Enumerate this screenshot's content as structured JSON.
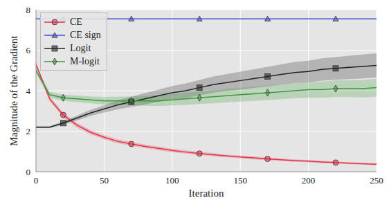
{
  "chart_data": {
    "type": "line",
    "x_label": "Iteration",
    "y_label": "Magnitude of the Gradient",
    "x": [
      0,
      10,
      20,
      30,
      40,
      50,
      60,
      70,
      80,
      90,
      100,
      110,
      120,
      130,
      140,
      150,
      160,
      170,
      180,
      190,
      200,
      210,
      220,
      230,
      240,
      250
    ],
    "xlim": [
      0,
      250
    ],
    "xticks": [
      0,
      50,
      100,
      150,
      200,
      250
    ],
    "ylim": [
      0,
      8
    ],
    "yticks": [
      0,
      2,
      4,
      6,
      8
    ],
    "grid": true,
    "legend": "upper left",
    "series": [
      {
        "name": "CE",
        "color": "#e8324a",
        "marker": "circle",
        "values": [
          5.3,
          3.6,
          2.8,
          2.3,
          1.95,
          1.7,
          1.5,
          1.37,
          1.25,
          1.15,
          1.05,
          0.97,
          0.9,
          0.84,
          0.78,
          0.73,
          0.68,
          0.63,
          0.59,
          0.55,
          0.52,
          0.48,
          0.45,
          0.42,
          0.39,
          0.37
        ],
        "error": [
          0.1,
          0.12,
          0.12,
          0.12,
          0.11,
          0.1,
          0.1,
          0.1,
          0.09,
          0.09,
          0.09,
          0.08,
          0.08,
          0.08,
          0.07,
          0.07,
          0.07,
          0.07,
          0.06,
          0.06,
          0.06,
          0.06,
          0.05,
          0.05,
          0.05,
          0.05
        ]
      },
      {
        "name": "CE sign",
        "color": "#3b4fd6",
        "marker": "triangle",
        "values": [
          7.55,
          7.55,
          7.55,
          7.55,
          7.55,
          7.55,
          7.55,
          7.55,
          7.55,
          7.55,
          7.55,
          7.55,
          7.55,
          7.55,
          7.55,
          7.55,
          7.55,
          7.55,
          7.55,
          7.55,
          7.55,
          7.55,
          7.55,
          7.55,
          7.55,
          7.55
        ],
        "error": [
          0,
          0,
          0,
          0,
          0,
          0,
          0,
          0,
          0,
          0,
          0,
          0,
          0,
          0,
          0,
          0,
          0,
          0,
          0,
          0,
          0,
          0,
          0,
          0,
          0,
          0
        ]
      },
      {
        "name": "Logit",
        "color": "#222222",
        "marker": "square",
        "values": [
          2.2,
          2.2,
          2.4,
          2.65,
          2.9,
          3.1,
          3.3,
          3.45,
          3.6,
          3.75,
          3.9,
          4.0,
          4.15,
          4.3,
          4.4,
          4.5,
          4.6,
          4.7,
          4.8,
          4.9,
          4.95,
          5.05,
          5.1,
          5.15,
          5.2,
          5.25
        ],
        "error": [
          0.05,
          0.05,
          0.08,
          0.12,
          0.15,
          0.18,
          0.22,
          0.25,
          0.28,
          0.3,
          0.33,
          0.36,
          0.38,
          0.4,
          0.42,
          0.44,
          0.46,
          0.48,
          0.5,
          0.52,
          0.53,
          0.55,
          0.56,
          0.58,
          0.59,
          0.6
        ]
      },
      {
        "name": "M-logit",
        "color": "#3a9a3a",
        "marker": "diamond",
        "values": [
          5.0,
          3.8,
          3.65,
          3.6,
          3.55,
          3.5,
          3.5,
          3.5,
          3.5,
          3.5,
          3.55,
          3.6,
          3.65,
          3.7,
          3.75,
          3.8,
          3.85,
          3.9,
          3.95,
          4.0,
          4.05,
          4.05,
          4.1,
          4.1,
          4.1,
          4.15
        ],
        "error": [
          0.15,
          0.15,
          0.15,
          0.16,
          0.17,
          0.18,
          0.2,
          0.22,
          0.24,
          0.26,
          0.28,
          0.3,
          0.31,
          0.32,
          0.33,
          0.34,
          0.35,
          0.36,
          0.37,
          0.38,
          0.39,
          0.4,
          0.41,
          0.42,
          0.43,
          0.45
        ]
      }
    ]
  }
}
